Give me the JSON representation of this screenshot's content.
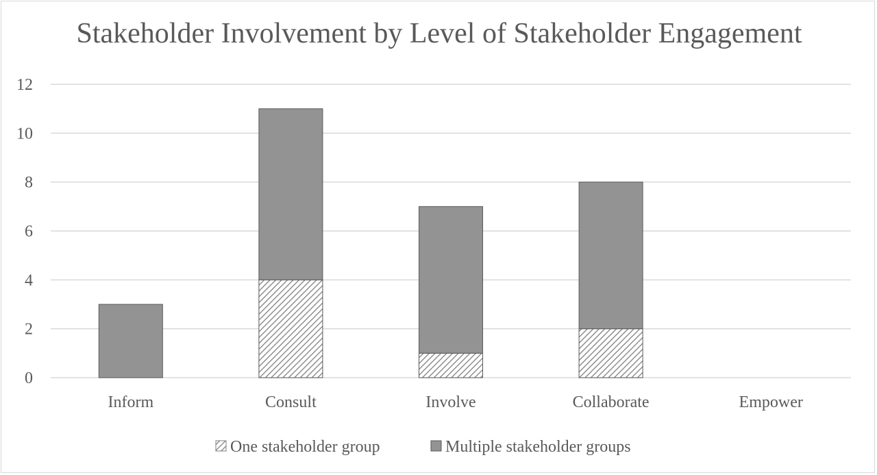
{
  "chart_data": {
    "type": "bar",
    "stacked": true,
    "title": "Stakeholder Involvement by Level of Stakeholder Engagement",
    "xlabel": "",
    "ylabel": "",
    "categories": [
      "Inform",
      "Consult",
      "Involve",
      "Collaborate",
      "Empower"
    ],
    "series": [
      {
        "name": "One stakeholder group",
        "values": [
          0,
          4,
          1,
          2,
          0
        ],
        "fill": "hatch",
        "color": "#7f7f7f"
      },
      {
        "name": "Multiple stakeholder groups",
        "values": [
          3,
          7,
          6,
          6,
          0
        ],
        "fill": "solid",
        "color": "#939393"
      }
    ],
    "ylim": [
      0,
      12
    ],
    "yticks": [
      0,
      2,
      4,
      6,
      8,
      10,
      12
    ],
    "grid": true,
    "legend_position": "bottom",
    "colors": {
      "text": "#595959",
      "grid": "#d9d9d9",
      "bar_edge": "#595959"
    }
  }
}
